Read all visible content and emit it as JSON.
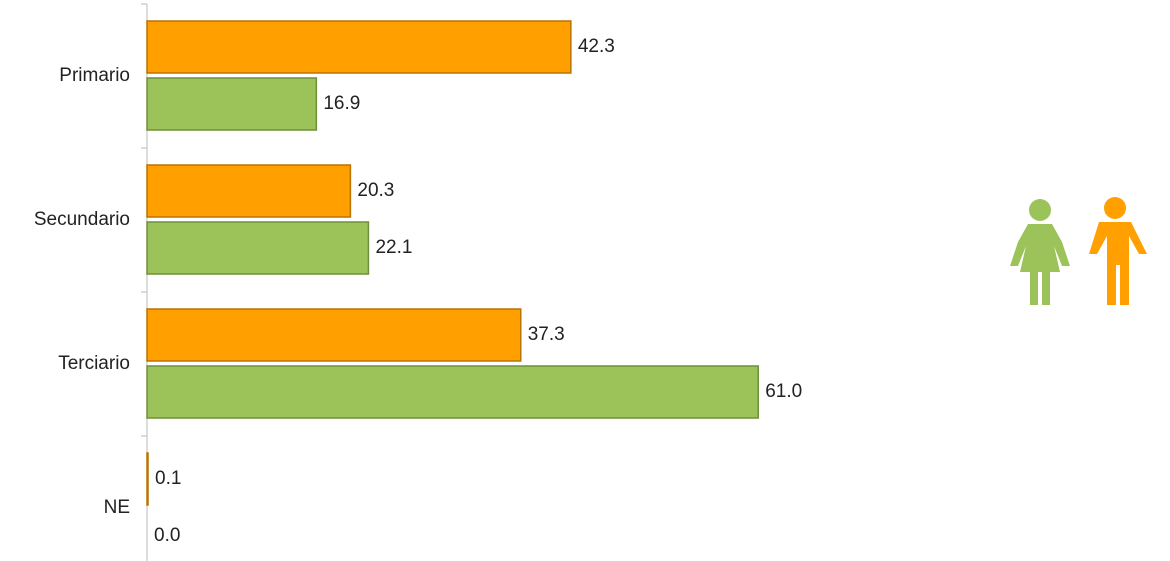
{
  "chart_data": {
    "type": "bar",
    "orientation": "horizontal",
    "categories": [
      "Primario",
      "Secundario",
      "Terciario",
      "NE"
    ],
    "series": [
      {
        "color": "#ffa000",
        "values": [
          42.3,
          20.3,
          37.3,
          0.1
        ],
        "value_labels": [
          "42.3",
          "20.3",
          "37.3",
          "0.1"
        ]
      },
      {
        "color": "#9bc35a",
        "values": [
          16.9,
          22.1,
          61.0,
          0.0
        ],
        "value_labels": [
          "16.9",
          "22.1",
          "61.0",
          "0.0"
        ]
      }
    ],
    "xlim": [
      0,
      100
    ]
  }
}
